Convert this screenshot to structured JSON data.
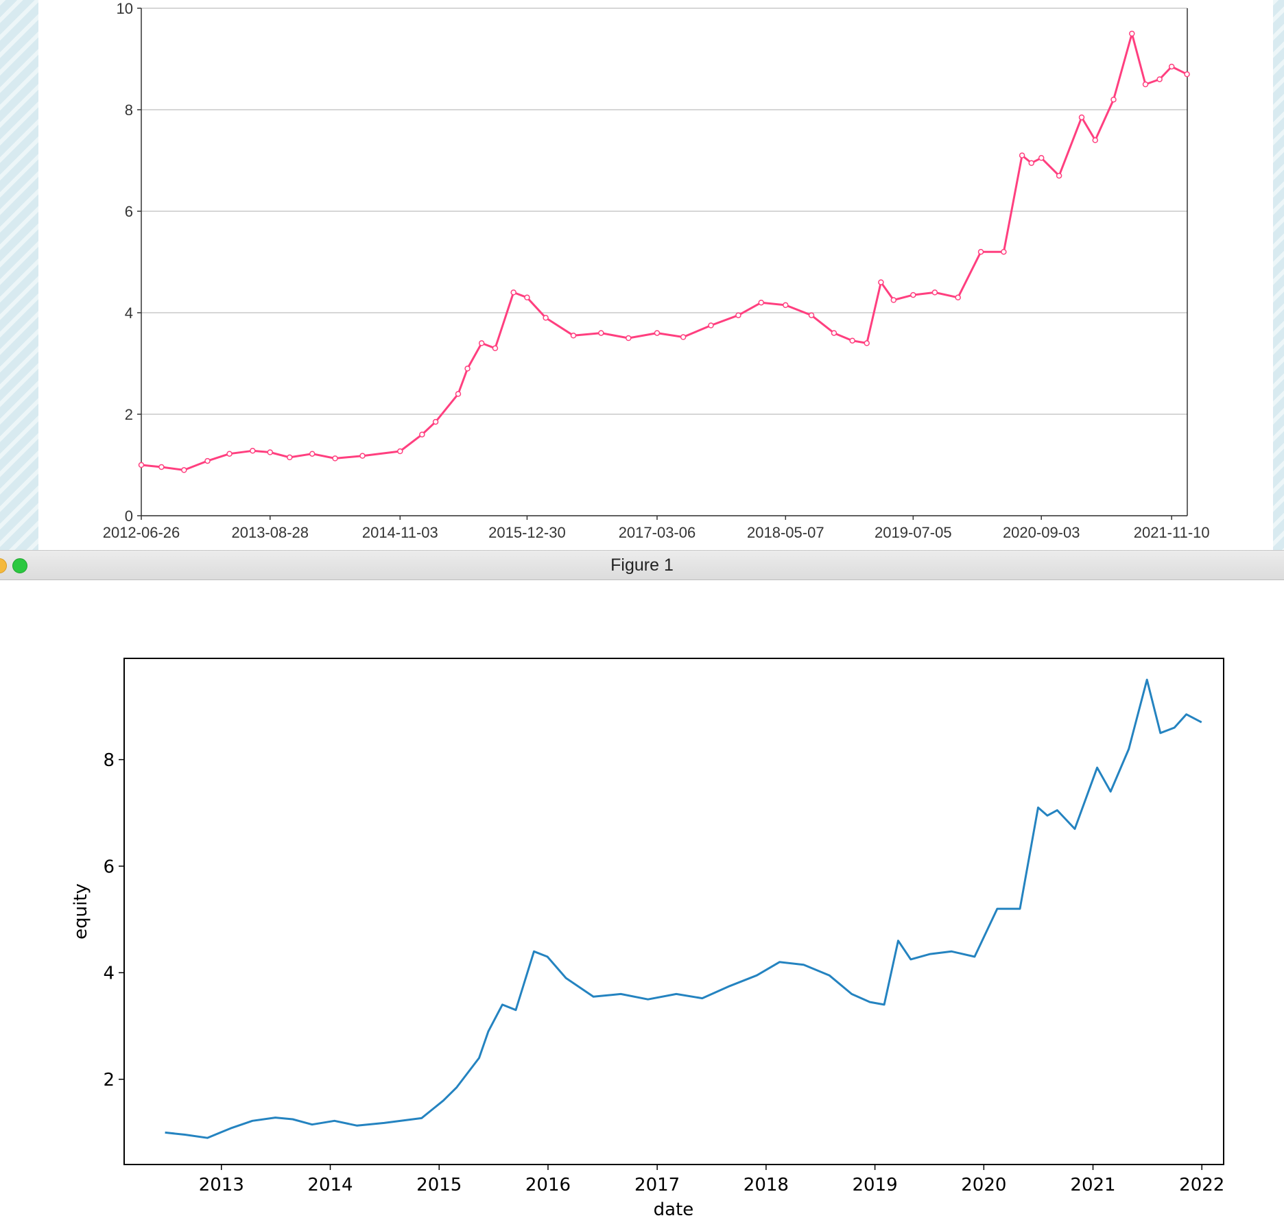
{
  "window": {
    "title": "Figure 1"
  },
  "colors": {
    "top_line": "#ff3f7f",
    "bottom_line": "#2483c0",
    "grid": "#c8c8c8"
  },
  "chart_data": [
    {
      "type": "line",
      "yticks": [
        "0",
        "2",
        "4",
        "6",
        "8",
        "10"
      ],
      "xticks": [
        "2012-06-26",
        "2013-08-28",
        "2014-11-03",
        "2015-12-30",
        "2017-03-06",
        "2018-05-07",
        "2019-07-05",
        "2020-09-03",
        "2021-11-10"
      ],
      "ylim": [
        0,
        10
      ],
      "xlim": [
        "2012-06-26",
        "2022-01-01"
      ],
      "grid": "horizontal",
      "series": [
        {
          "color": "#ff3f7f",
          "x": [
            "2012-06-26",
            "2012-09-01",
            "2012-11-15",
            "2013-02-01",
            "2013-04-15",
            "2013-07-01",
            "2013-08-28",
            "2013-11-01",
            "2014-01-15",
            "2014-04-01",
            "2014-07-01",
            "2014-11-03",
            "2015-01-15",
            "2015-03-01",
            "2015-05-15",
            "2015-06-15",
            "2015-08-01",
            "2015-09-15",
            "2015-11-15",
            "2015-12-30",
            "2016-03-01",
            "2016-06-01",
            "2016-09-01",
            "2016-12-01",
            "2017-03-06",
            "2017-06-01",
            "2017-09-01",
            "2017-12-01",
            "2018-02-15",
            "2018-05-07",
            "2018-08-01",
            "2018-10-15",
            "2018-12-15",
            "2019-02-01",
            "2019-03-20",
            "2019-05-01",
            "2019-07-05",
            "2019-09-15",
            "2019-12-01",
            "2020-02-15",
            "2020-05-01",
            "2020-07-01",
            "2020-08-01",
            "2020-09-03",
            "2020-11-01",
            "2021-01-15",
            "2021-03-01",
            "2021-05-01",
            "2021-07-01",
            "2021-08-15",
            "2021-10-01",
            "2021-11-10",
            "2021-12-31"
          ],
          "y": [
            1.0,
            0.96,
            0.9,
            1.08,
            1.22,
            1.28,
            1.25,
            1.15,
            1.22,
            1.13,
            1.18,
            1.27,
            1.6,
            1.85,
            2.4,
            2.9,
            3.4,
            3.3,
            4.4,
            4.3,
            3.9,
            3.55,
            3.6,
            3.5,
            3.6,
            3.52,
            3.75,
            3.95,
            4.2,
            4.15,
            3.95,
            3.6,
            3.45,
            3.4,
            4.6,
            4.25,
            4.35,
            4.4,
            4.3,
            5.2,
            5.2,
            7.1,
            6.95,
            7.05,
            6.7,
            7.85,
            7.4,
            8.2,
            9.5,
            8.5,
            8.6,
            8.85,
            8.7
          ]
        }
      ]
    },
    {
      "type": "line",
      "xlabel": "date",
      "ylabel": "equity",
      "yticks": [
        "2",
        "4",
        "6",
        "8"
      ],
      "xticks": [
        "2013",
        "2014",
        "2015",
        "2016",
        "2017",
        "2018",
        "2019",
        "2020",
        "2021",
        "2022"
      ],
      "ylim": [
        0.4,
        9.9
      ],
      "xlim": [
        "2012-02-10",
        "2022-03-15"
      ],
      "grid": "off",
      "series": [
        {
          "color": "#2483c0",
          "x": [
            "2012-06-26",
            "2012-09-01",
            "2012-11-15",
            "2013-02-01",
            "2013-04-15",
            "2013-07-01",
            "2013-08-28",
            "2013-11-01",
            "2014-01-15",
            "2014-04-01",
            "2014-07-01",
            "2014-11-03",
            "2015-01-15",
            "2015-03-01",
            "2015-05-15",
            "2015-06-15",
            "2015-08-01",
            "2015-09-15",
            "2015-11-15",
            "2015-12-30",
            "2016-03-01",
            "2016-06-01",
            "2016-09-01",
            "2016-12-01",
            "2017-03-06",
            "2017-06-01",
            "2017-09-01",
            "2017-12-01",
            "2018-02-15",
            "2018-05-07",
            "2018-08-01",
            "2018-10-15",
            "2018-12-15",
            "2019-02-01",
            "2019-03-20",
            "2019-05-01",
            "2019-07-05",
            "2019-09-15",
            "2019-12-01",
            "2020-02-15",
            "2020-05-01",
            "2020-07-01",
            "2020-08-01",
            "2020-09-03",
            "2020-11-01",
            "2021-01-15",
            "2021-03-01",
            "2021-05-01",
            "2021-07-01",
            "2021-08-15",
            "2021-10-01",
            "2021-11-10",
            "2021-12-31"
          ],
          "y": [
            1.0,
            0.96,
            0.9,
            1.08,
            1.22,
            1.28,
            1.25,
            1.15,
            1.22,
            1.13,
            1.18,
            1.27,
            1.6,
            1.85,
            2.4,
            2.9,
            3.4,
            3.3,
            4.4,
            4.3,
            3.9,
            3.55,
            3.6,
            3.5,
            3.6,
            3.52,
            3.75,
            3.95,
            4.2,
            4.15,
            3.95,
            3.6,
            3.45,
            3.4,
            4.6,
            4.25,
            4.35,
            4.4,
            4.3,
            5.2,
            5.2,
            7.1,
            6.95,
            7.05,
            6.7,
            7.85,
            7.4,
            8.2,
            9.5,
            8.5,
            8.6,
            8.85,
            8.7
          ]
        }
      ]
    }
  ]
}
